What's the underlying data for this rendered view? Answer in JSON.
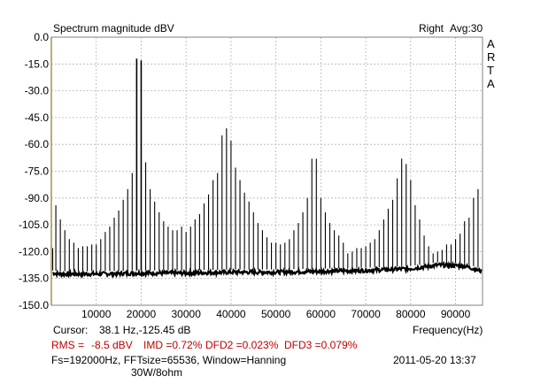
{
  "header": {
    "title": "Spectrum magnitude dBV",
    "right_label": "Right",
    "avg_label": "Avg:30",
    "brand_letters": [
      "A",
      "R",
      "T",
      "A"
    ]
  },
  "footer": {
    "cursor_label": "Cursor:",
    "cursor_value": "38.1 Hz,-125.45 dB",
    "freq_label": "Frequency(Hz)",
    "rms_label": "RMS =",
    "rms_value": "-8.5 dBV",
    "imd_label": "IMD =0.72%",
    "dfd2_label": "DFD2 =0.023%",
    "dfd3_label": "DFD3 =0.079%",
    "settings": "Fs=192000Hz, FFTsize=65536, Window=Hanning",
    "datetime": "2011-05-20  13:37",
    "note": "30W/8ohm"
  },
  "colors": {
    "trace": "#000000",
    "grid": "#b4b4b4",
    "cursor": "#d8c000",
    "stats": "#c00000"
  },
  "chart_data": {
    "type": "line",
    "title": "Spectrum magnitude dBV",
    "xlabel": "Frequency(Hz)",
    "ylabel": "",
    "xlim": [
      0,
      96000
    ],
    "ylim": [
      -150,
      0
    ],
    "xticks": [
      10000,
      20000,
      30000,
      40000,
      50000,
      60000,
      70000,
      80000,
      90000
    ],
    "yticks": [
      0,
      -15,
      -30,
      -45,
      -60,
      -75,
      -90,
      -105,
      -120,
      -135,
      -150
    ],
    "ytick_labels": [
      "0.0",
      "-15.0",
      "-30.0",
      "-45.0",
      "-60.0",
      "-75.0",
      "-90.0",
      "-105.0",
      "-120.0",
      "-135.0",
      "-150.0"
    ],
    "grid": true,
    "noise_floor": [
      {
        "x": 300,
        "y": -132
      },
      {
        "x": 2000,
        "y": -132.5
      },
      {
        "x": 10000,
        "y": -132.5
      },
      {
        "x": 20000,
        "y": -132
      },
      {
        "x": 30000,
        "y": -132
      },
      {
        "x": 40000,
        "y": -131.5
      },
      {
        "x": 50000,
        "y": -131.5
      },
      {
        "x": 60000,
        "y": -131
      },
      {
        "x": 70000,
        "y": -130.5
      },
      {
        "x": 80000,
        "y": -129.5
      },
      {
        "x": 86000,
        "y": -127.5
      },
      {
        "x": 92000,
        "y": -128
      },
      {
        "x": 95800,
        "y": -131
      }
    ],
    "peaks": [
      {
        "x": 300,
        "y": -118
      },
      {
        "x": 1000,
        "y": -94
      },
      {
        "x": 2000,
        "y": -102
      },
      {
        "x": 3000,
        "y": -108
      },
      {
        "x": 4000,
        "y": -113
      },
      {
        "x": 5000,
        "y": -115
      },
      {
        "x": 6000,
        "y": -118
      },
      {
        "x": 7000,
        "y": -117
      },
      {
        "x": 8000,
        "y": -117
      },
      {
        "x": 9000,
        "y": -116
      },
      {
        "x": 10000,
        "y": -116
      },
      {
        "x": 11000,
        "y": -113
      },
      {
        "x": 12000,
        "y": -109
      },
      {
        "x": 13000,
        "y": -106
      },
      {
        "x": 14000,
        "y": -101
      },
      {
        "x": 15000,
        "y": -97
      },
      {
        "x": 16000,
        "y": -91
      },
      {
        "x": 17000,
        "y": -85
      },
      {
        "x": 18000,
        "y": -76
      },
      {
        "x": 19000,
        "y": -12
      },
      {
        "x": 20000,
        "y": -13
      },
      {
        "x": 21000,
        "y": -70
      },
      {
        "x": 22000,
        "y": -85
      },
      {
        "x": 23000,
        "y": -92
      },
      {
        "x": 24000,
        "y": -98
      },
      {
        "x": 25000,
        "y": -103
      },
      {
        "x": 26000,
        "y": -106
      },
      {
        "x": 27000,
        "y": -108
      },
      {
        "x": 28000,
        "y": -108
      },
      {
        "x": 29000,
        "y": -106
      },
      {
        "x": 30000,
        "y": -109
      },
      {
        "x": 31000,
        "y": -106
      },
      {
        "x": 32000,
        "y": -102
      },
      {
        "x": 33000,
        "y": -99
      },
      {
        "x": 34000,
        "y": -93
      },
      {
        "x": 35000,
        "y": -88
      },
      {
        "x": 36000,
        "y": -80
      },
      {
        "x": 37000,
        "y": -76
      },
      {
        "x": 38000,
        "y": -55
      },
      {
        "x": 39000,
        "y": -51
      },
      {
        "x": 40000,
        "y": -58
      },
      {
        "x": 41000,
        "y": -73
      },
      {
        "x": 42000,
        "y": -80
      },
      {
        "x": 43000,
        "y": -87
      },
      {
        "x": 44000,
        "y": -92
      },
      {
        "x": 45000,
        "y": -98
      },
      {
        "x": 46000,
        "y": -104
      },
      {
        "x": 47000,
        "y": -108
      },
      {
        "x": 48000,
        "y": -112
      },
      {
        "x": 49000,
        "y": -115
      },
      {
        "x": 50000,
        "y": -115
      },
      {
        "x": 51000,
        "y": -116
      },
      {
        "x": 52000,
        "y": -115
      },
      {
        "x": 53000,
        "y": -113
      },
      {
        "x": 54000,
        "y": -108
      },
      {
        "x": 55000,
        "y": -104
      },
      {
        "x": 56000,
        "y": -98
      },
      {
        "x": 57000,
        "y": -90
      },
      {
        "x": 58000,
        "y": -68
      },
      {
        "x": 59000,
        "y": -68
      },
      {
        "x": 60000,
        "y": -90
      },
      {
        "x": 61000,
        "y": -98
      },
      {
        "x": 62000,
        "y": -104
      },
      {
        "x": 63000,
        "y": -108
      },
      {
        "x": 64000,
        "y": -111
      },
      {
        "x": 65000,
        "y": -115
      },
      {
        "x": 66000,
        "y": -121
      },
      {
        "x": 67000,
        "y": -120
      },
      {
        "x": 68000,
        "y": -118
      },
      {
        "x": 69000,
        "y": -118
      },
      {
        "x": 70000,
        "y": -117
      },
      {
        "x": 71000,
        "y": -115
      },
      {
        "x": 72000,
        "y": -113
      },
      {
        "x": 73000,
        "y": -108
      },
      {
        "x": 74000,
        "y": -102
      },
      {
        "x": 75000,
        "y": -96
      },
      {
        "x": 76000,
        "y": -91
      },
      {
        "x": 77000,
        "y": -79
      },
      {
        "x": 78000,
        "y": -68
      },
      {
        "x": 79000,
        "y": -71
      },
      {
        "x": 80000,
        "y": -80
      },
      {
        "x": 81000,
        "y": -94
      },
      {
        "x": 82000,
        "y": -102
      },
      {
        "x": 83000,
        "y": -111
      },
      {
        "x": 84000,
        "y": -117
      },
      {
        "x": 85000,
        "y": -121
      },
      {
        "x": 86000,
        "y": -120
      },
      {
        "x": 87000,
        "y": -119
      },
      {
        "x": 88000,
        "y": -116
      },
      {
        "x": 89000,
        "y": -116
      },
      {
        "x": 90000,
        "y": -113
      },
      {
        "x": 91000,
        "y": -110
      },
      {
        "x": 92000,
        "y": -103
      },
      {
        "x": 93000,
        "y": -101
      },
      {
        "x": 94000,
        "y": -90
      },
      {
        "x": 95000,
        "y": -85
      }
    ]
  }
}
